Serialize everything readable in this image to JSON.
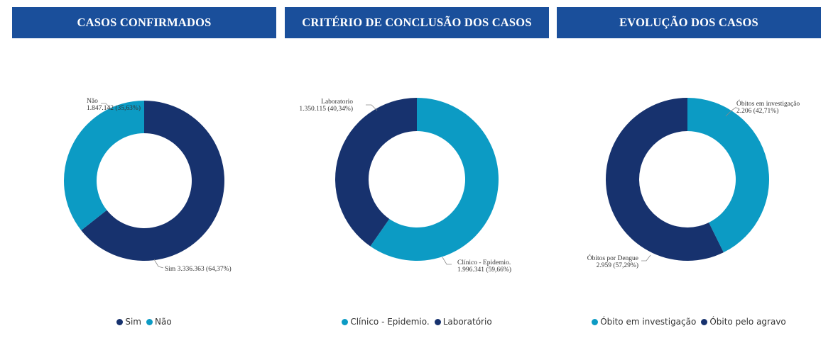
{
  "colors": {
    "header_bg": "#1a4f9b",
    "dark": "#17326e",
    "light": "#0c9bc4"
  },
  "panels": [
    {
      "title": "CASOS CONFIRMADOS"
    },
    {
      "title": "CRITÉRIO DE CONCLUSÃO DOS CASOS"
    },
    {
      "title": "EVOLUÇÃO DOS CASOS"
    }
  ],
  "chart_data": [
    {
      "type": "pie",
      "title": "CASOS CONFIRMADOS",
      "donut": true,
      "slices": [
        {
          "name": "Sim",
          "value": 3336363,
          "percent": 64.37,
          "color": "#17326e",
          "label_lines": [
            "Sim 3.336.363 (64,37%)"
          ]
        },
        {
          "name": "Não",
          "value": 1847142,
          "percent": 35.63,
          "color": "#0c9bc4",
          "label_lines": [
            "Não",
            "1.847.142 (35,63%)"
          ]
        }
      ],
      "legend": [
        {
          "name": "Sim",
          "color": "#17326e"
        },
        {
          "name": "Não",
          "color": "#0c9bc4"
        }
      ],
      "legend_position": "bottom"
    },
    {
      "type": "pie",
      "title": "CRITÉRIO DE CONCLUSÃO DOS CASOS",
      "donut": true,
      "slices": [
        {
          "name": "Clínico - Epidemio.",
          "value": 1996341,
          "percent": 59.66,
          "color": "#0c9bc4",
          "label_lines": [
            "Clínico - Epidemio.",
            "1.996.341 (59,66%)"
          ]
        },
        {
          "name": "Laboratorio",
          "value": 1350115,
          "percent": 40.34,
          "color": "#17326e",
          "label_lines": [
            "Laboratorio",
            "1.350.115 (40,34%)"
          ]
        }
      ],
      "legend": [
        {
          "name": "Clínico - Epidemio.",
          "color": "#0c9bc4"
        },
        {
          "name": "Laboratório",
          "color": "#17326e"
        }
      ],
      "legend_position": "bottom"
    },
    {
      "type": "pie",
      "title": "EVOLUÇÃO DOS CASOS",
      "donut": true,
      "slices": [
        {
          "name": "Óbitos em investigação",
          "value": 2206,
          "percent": 42.71,
          "color": "#0c9bc4",
          "label_lines": [
            "Óbitos em investigação",
            "2.206 (42,71%)"
          ]
        },
        {
          "name": "Óbitos por Dengue",
          "value": 2959,
          "percent": 57.29,
          "color": "#17326e",
          "label_lines": [
            "Óbitos por Dengue",
            "2.959 (57,29%)"
          ]
        }
      ],
      "legend": [
        {
          "name": "Óbito em investigação",
          "color": "#0c9bc4"
        },
        {
          "name": "Óbito pelo agravo",
          "color": "#17326e"
        }
      ],
      "legend_position": "bottom"
    }
  ]
}
